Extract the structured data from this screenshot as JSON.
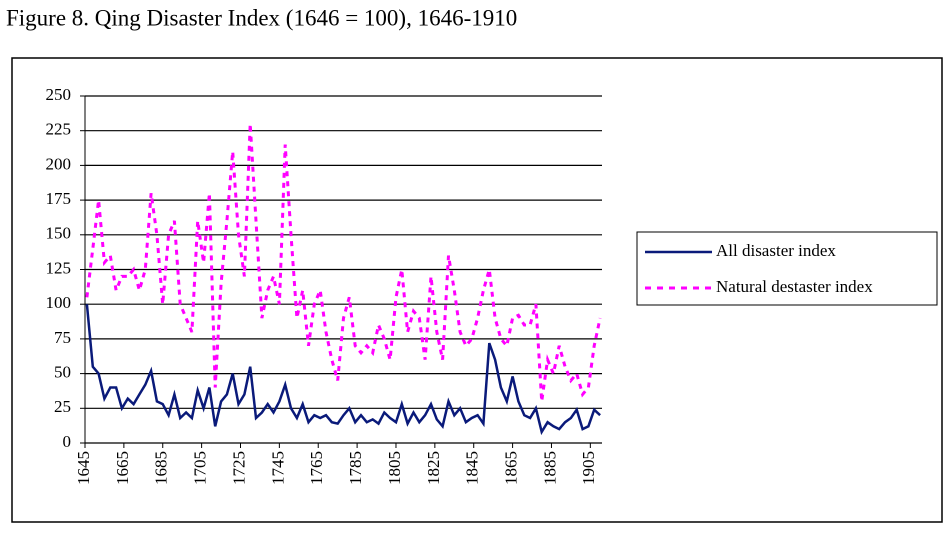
{
  "chart_data": {
    "type": "line",
    "title": "Figure 8. Qing Disaster Index (1646 = 100), 1646-1910",
    "x": [
      1646,
      1649,
      1652,
      1655,
      1658,
      1661,
      1664,
      1667,
      1670,
      1673,
      1676,
      1679,
      1682,
      1685,
      1688,
      1691,
      1694,
      1697,
      1700,
      1703,
      1706,
      1709,
      1712,
      1715,
      1718,
      1721,
      1724,
      1727,
      1730,
      1733,
      1736,
      1739,
      1742,
      1745,
      1748,
      1751,
      1754,
      1757,
      1760,
      1763,
      1766,
      1769,
      1772,
      1775,
      1778,
      1781,
      1784,
      1787,
      1790,
      1793,
      1796,
      1799,
      1802,
      1805,
      1808,
      1811,
      1814,
      1817,
      1820,
      1823,
      1826,
      1829,
      1832,
      1835,
      1838,
      1841,
      1844,
      1847,
      1850,
      1853,
      1856,
      1859,
      1862,
      1865,
      1868,
      1871,
      1874,
      1877,
      1880,
      1883,
      1886,
      1889,
      1892,
      1895,
      1898,
      1901,
      1904,
      1907,
      1910
    ],
    "series": [
      {
        "name": "All disaster index",
        "color": "#0a1a7a",
        "dashed": false,
        "values": [
          100,
          55,
          50,
          32,
          40,
          40,
          25,
          32,
          28,
          35,
          42,
          52,
          30,
          28,
          20,
          35,
          18,
          22,
          18,
          38,
          25,
          40,
          12,
          30,
          35,
          50,
          28,
          35,
          55,
          18,
          22,
          28,
          22,
          30,
          42,
          25,
          18,
          28,
          15,
          20,
          18,
          20,
          15,
          14,
          20,
          25,
          15,
          20,
          15,
          17,
          14,
          22,
          18,
          15,
          28,
          14,
          22,
          15,
          20,
          28,
          17,
          12,
          30,
          20,
          25,
          15,
          18,
          20,
          14,
          72,
          60,
          40,
          30,
          48,
          30,
          20,
          18,
          25,
          8,
          15,
          12,
          10,
          15,
          18,
          24,
          10,
          12,
          24,
          20
        ]
      },
      {
        "name": "Natural destaster index",
        "color": "#ff00ff",
        "dashed": true,
        "values": [
          105,
          140,
          175,
          130,
          135,
          110,
          120,
          120,
          125,
          110,
          125,
          180,
          150,
          100,
          150,
          160,
          100,
          90,
          80,
          160,
          130,
          180,
          40,
          115,
          160,
          210,
          150,
          120,
          230,
          160,
          90,
          110,
          120,
          100,
          215,
          150,
          90,
          110,
          70,
          100,
          110,
          80,
          60,
          45,
          90,
          105,
          70,
          65,
          70,
          65,
          85,
          75,
          60,
          105,
          125,
          80,
          95,
          90,
          60,
          120,
          80,
          60,
          135,
          110,
          80,
          70,
          75,
          90,
          110,
          125,
          90,
          75,
          70,
          90,
          92,
          85,
          85,
          100,
          30,
          60,
          50,
          70,
          55,
          45,
          50,
          35,
          40,
          70,
          90
        ]
      }
    ],
    "xlim": [
      1645,
      1911
    ],
    "xticks": [
      1645,
      1665,
      1685,
      1705,
      1725,
      1745,
      1765,
      1785,
      1805,
      1825,
      1845,
      1865,
      1885,
      1905
    ],
    "ylim": [
      0,
      250
    ],
    "yticks": [
      0,
      25,
      50,
      75,
      100,
      125,
      150,
      175,
      200,
      225,
      250
    ],
    "grid": true,
    "legend": "right"
  }
}
